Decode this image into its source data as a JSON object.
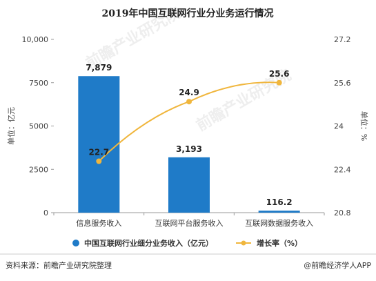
{
  "colors": {
    "bar": "#1f7bc8",
    "line": "#f0b63d",
    "axis": "#999999"
  },
  "watermark": [
    "前瞻产业研究院",
    "前瞻产业研究院"
  ],
  "footer": {
    "source": "资料来源：前瞻产业研究院整理",
    "brand": "@前瞻经济学人APP"
  },
  "chart_data": {
    "type": "bar",
    "title": "2019年中国互联网行业分业务运行情况",
    "categories": [
      "信息服务收入",
      "互联网平台服务收入",
      "互联网数据服务收入"
    ],
    "series": [
      {
        "name": "中国互联网行业细分业务收入（亿元）",
        "type": "bar",
        "axis": "left",
        "values": [
          7879,
          3193,
          116.2
        ],
        "labels": [
          "7,879",
          "3,193",
          "116.2"
        ]
      },
      {
        "name": "增长率（%）",
        "type": "line",
        "axis": "right",
        "values": [
          22.7,
          24.9,
          25.6
        ],
        "labels": [
          "22.7",
          "24.9",
          "25.6"
        ]
      }
    ],
    "y_left": {
      "label": "单位：亿元",
      "min": 0,
      "max": 10000,
      "ticks": [
        0,
        2500,
        5000,
        7500,
        10000
      ],
      "tick_labels": [
        "0",
        "2500",
        "5000",
        "7500",
        "10,000"
      ]
    },
    "y_right": {
      "label": "单位：%",
      "min": 20.8,
      "max": 27.2,
      "ticks": [
        20.8,
        22.4,
        24,
        25.6,
        27.2
      ],
      "tick_labels": [
        "20.8",
        "22.4",
        "24",
        "25.6",
        "27.2"
      ]
    },
    "grid": false,
    "legend_position": "bottom"
  }
}
